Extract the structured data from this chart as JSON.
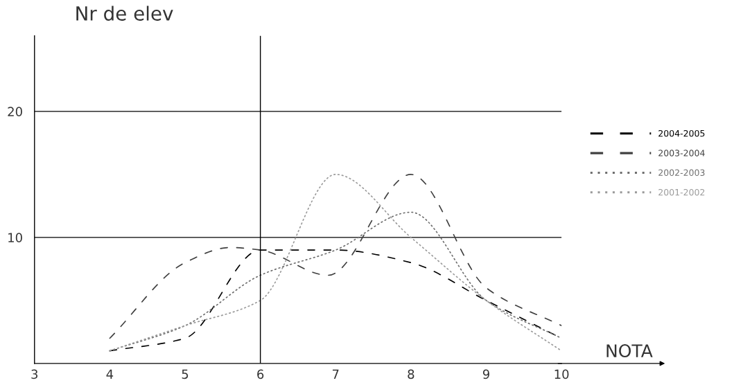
{
  "chart_data": {
    "type": "line",
    "xlabel": "NOTA",
    "ylabel": "Nr de elev",
    "x": [
      4,
      5,
      6,
      7,
      8,
      9,
      10
    ],
    "series": [
      {
        "name": "2004-2005",
        "color": "#000000",
        "line_style": "dashed",
        "values": [
          1,
          2,
          9,
          9,
          8,
          5,
          2
        ]
      },
      {
        "name": "2003-2004",
        "color": "#404040",
        "line_style": "dashed",
        "x": [
          4,
          5,
          5.6,
          6,
          6.9,
          8,
          9,
          10
        ],
        "values": [
          2,
          8,
          9.2,
          9,
          7,
          15,
          6,
          3
        ]
      },
      {
        "name": "2002-2003",
        "color": "#6e6e6e",
        "line_style": "dotted",
        "values": [
          1,
          3,
          7,
          9,
          12,
          5,
          2
        ]
      },
      {
        "name": "2001-2002",
        "color": "#9a9a9a",
        "line_style": "dotted",
        "values": [
          1,
          3,
          5,
          15,
          10,
          5,
          1
        ]
      }
    ],
    "xlim": [
      3,
      10
    ],
    "xticks": [
      3,
      4,
      5,
      6,
      7,
      8,
      9,
      10
    ],
    "ylim": [
      0,
      26
    ],
    "yticks": [
      10,
      20
    ],
    "grid": "y",
    "legend": "right",
    "ref_lines": [
      {
        "axis": "x",
        "value": 6
      }
    ]
  }
}
